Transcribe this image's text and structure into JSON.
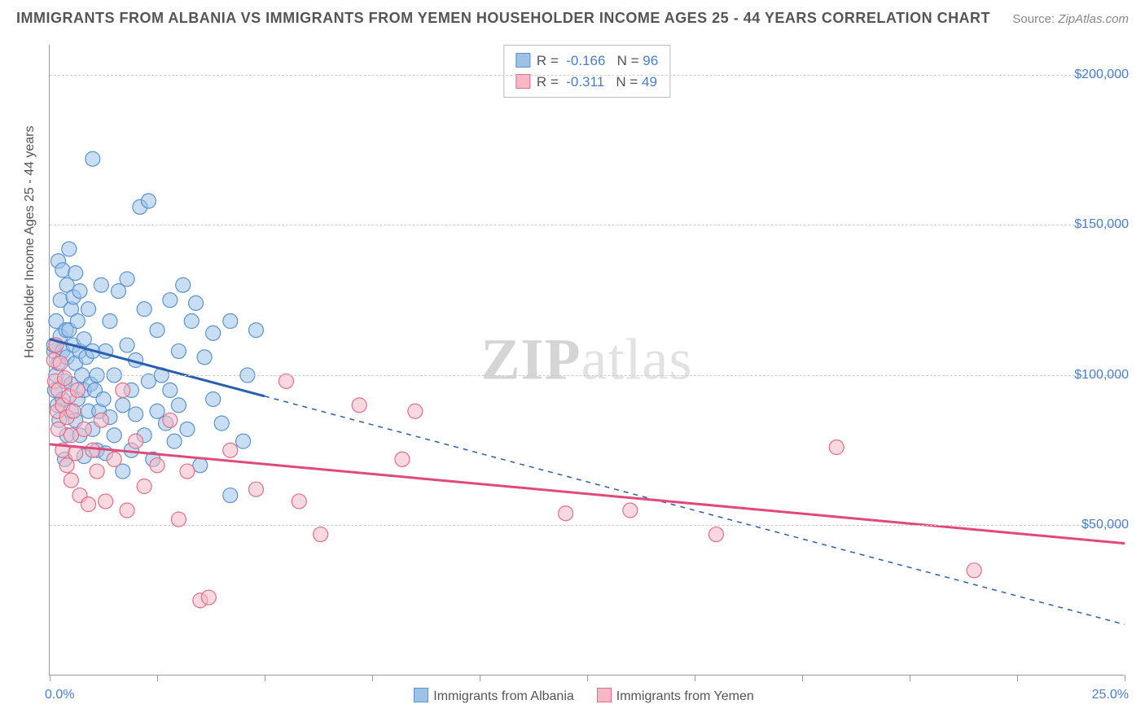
{
  "title": "IMMIGRANTS FROM ALBANIA VS IMMIGRANTS FROM YEMEN HOUSEHOLDER INCOME AGES 25 - 44 YEARS CORRELATION CHART",
  "source_label": "Source:",
  "source_value": "ZipAtlas.com",
  "watermark_bold": "ZIP",
  "watermark_light": "atlas",
  "chart": {
    "type": "scatter",
    "xlim": [
      0,
      25
    ],
    "ylim": [
      0,
      210000
    ],
    "x_axis_min_label": "0.0%",
    "x_axis_max_label": "25.0%",
    "y_axis_label": "Householder Income Ages 25 - 44 years",
    "y_ticks": [
      50000,
      100000,
      150000,
      200000
    ],
    "y_tick_labels": [
      "$50,000",
      "$100,000",
      "$150,000",
      "$200,000"
    ],
    "x_tick_positions": [
      0,
      2.5,
      5,
      7.5,
      10,
      12.5,
      15,
      17.5,
      20,
      22.5,
      25
    ],
    "grid_color": "#cccccc",
    "axis_color": "#999999",
    "background_color": "#ffffff",
    "series": [
      {
        "name": "Immigrants from Albania",
        "fill_color": "#9cc2e8",
        "stroke_color": "#5a93cf",
        "fill_opacity": 0.55,
        "marker_radius": 9,
        "correlation_r": "-0.166",
        "correlation_n": "96",
        "regression": {
          "x1": 0,
          "y1": 112000,
          "x2": 5,
          "y2": 93000,
          "dash_x1": 5,
          "dash_y1": 93000,
          "dash_x2": 25,
          "dash_y2": 17000,
          "line_color": "#2a5fb0",
          "line_width": 3
        },
        "points": [
          [
            0.1,
            108000
          ],
          [
            0.1,
            110000
          ],
          [
            0.12,
            95000
          ],
          [
            0.15,
            100000
          ],
          [
            0.15,
            118000
          ],
          [
            0.18,
            90000
          ],
          [
            0.2,
            104000
          ],
          [
            0.2,
            138000
          ],
          [
            0.22,
            85000
          ],
          [
            0.25,
            113000
          ],
          [
            0.25,
            125000
          ],
          [
            0.3,
            92000
          ],
          [
            0.3,
            108000
          ],
          [
            0.3,
            135000
          ],
          [
            0.35,
            72000
          ],
          [
            0.35,
            98000
          ],
          [
            0.38,
            115000
          ],
          [
            0.4,
            80000
          ],
          [
            0.4,
            106000
          ],
          [
            0.4,
            130000
          ],
          [
            0.45,
            115000
          ],
          [
            0.45,
            142000
          ],
          [
            0.5,
            88000
          ],
          [
            0.5,
            97000
          ],
          [
            0.5,
            122000
          ],
          [
            0.55,
            110000
          ],
          [
            0.55,
            126000
          ],
          [
            0.6,
            85000
          ],
          [
            0.6,
            104000
          ],
          [
            0.6,
            134000
          ],
          [
            0.65,
            92000
          ],
          [
            0.65,
            118000
          ],
          [
            0.7,
            80000
          ],
          [
            0.7,
            108000
          ],
          [
            0.7,
            128000
          ],
          [
            0.75,
            100000
          ],
          [
            0.8,
            73000
          ],
          [
            0.8,
            95000
          ],
          [
            0.8,
            112000
          ],
          [
            0.85,
            106000
          ],
          [
            0.9,
            88000
          ],
          [
            0.9,
            122000
          ],
          [
            0.95,
            97000
          ],
          [
            1.0,
            82000
          ],
          [
            1.0,
            108000
          ],
          [
            1.0,
            172000
          ],
          [
            1.05,
            95000
          ],
          [
            1.1,
            75000
          ],
          [
            1.1,
            100000
          ],
          [
            1.15,
            88000
          ],
          [
            1.2,
            130000
          ],
          [
            1.25,
            92000
          ],
          [
            1.3,
            108000
          ],
          [
            1.3,
            74000
          ],
          [
            1.4,
            86000
          ],
          [
            1.4,
            118000
          ],
          [
            1.5,
            80000
          ],
          [
            1.5,
            100000
          ],
          [
            1.6,
            128000
          ],
          [
            1.7,
            90000
          ],
          [
            1.7,
            68000
          ],
          [
            1.8,
            110000
          ],
          [
            1.8,
            132000
          ],
          [
            1.9,
            95000
          ],
          [
            1.9,
            75000
          ],
          [
            2.0,
            105000
          ],
          [
            2.0,
            87000
          ],
          [
            2.1,
            156000
          ],
          [
            2.2,
            80000
          ],
          [
            2.2,
            122000
          ],
          [
            2.3,
            98000
          ],
          [
            2.3,
            158000
          ],
          [
            2.4,
            72000
          ],
          [
            2.5,
            88000
          ],
          [
            2.5,
            115000
          ],
          [
            2.6,
            100000
          ],
          [
            2.7,
            84000
          ],
          [
            2.8,
            95000
          ],
          [
            2.8,
            125000
          ],
          [
            2.9,
            78000
          ],
          [
            3.0,
            108000
          ],
          [
            3.0,
            90000
          ],
          [
            3.1,
            130000
          ],
          [
            3.2,
            82000
          ],
          [
            3.3,
            118000
          ],
          [
            3.4,
            124000
          ],
          [
            3.5,
            70000
          ],
          [
            3.6,
            106000
          ],
          [
            3.8,
            92000
          ],
          [
            3.8,
            114000
          ],
          [
            4.0,
            84000
          ],
          [
            4.2,
            118000
          ],
          [
            4.2,
            60000
          ],
          [
            4.5,
            78000
          ],
          [
            4.6,
            100000
          ],
          [
            4.8,
            115000
          ]
        ]
      },
      {
        "name": "Immigrants from Yemen",
        "fill_color": "#f6b8c5",
        "stroke_color": "#e26e8a",
        "fill_opacity": 0.55,
        "marker_radius": 9,
        "correlation_r": "-0.311",
        "correlation_n": "49",
        "regression": {
          "x1": 0,
          "y1": 77000,
          "x2": 25,
          "y2": 44000,
          "line_color": "#e04a78",
          "line_width": 3
        },
        "points": [
          [
            0.1,
            105000
          ],
          [
            0.12,
            98000
          ],
          [
            0.15,
            110000
          ],
          [
            0.18,
            88000
          ],
          [
            0.2,
            95000
          ],
          [
            0.2,
            82000
          ],
          [
            0.25,
            104000
          ],
          [
            0.3,
            90000
          ],
          [
            0.3,
            75000
          ],
          [
            0.35,
            99000
          ],
          [
            0.4,
            86000
          ],
          [
            0.4,
            70000
          ],
          [
            0.45,
            93000
          ],
          [
            0.5,
            80000
          ],
          [
            0.5,
            65000
          ],
          [
            0.55,
            88000
          ],
          [
            0.6,
            74000
          ],
          [
            0.65,
            95000
          ],
          [
            0.7,
            60000
          ],
          [
            0.8,
            82000
          ],
          [
            0.9,
            57000
          ],
          [
            1.0,
            75000
          ],
          [
            1.1,
            68000
          ],
          [
            1.2,
            85000
          ],
          [
            1.3,
            58000
          ],
          [
            1.5,
            72000
          ],
          [
            1.7,
            95000
          ],
          [
            1.8,
            55000
          ],
          [
            2.0,
            78000
          ],
          [
            2.2,
            63000
          ],
          [
            2.5,
            70000
          ],
          [
            2.8,
            85000
          ],
          [
            3.0,
            52000
          ],
          [
            3.2,
            68000
          ],
          [
            3.5,
            25000
          ],
          [
            3.7,
            26000
          ],
          [
            4.2,
            75000
          ],
          [
            4.8,
            62000
          ],
          [
            5.5,
            98000
          ],
          [
            5.8,
            58000
          ],
          [
            6.3,
            47000
          ],
          [
            7.2,
            90000
          ],
          [
            8.2,
            72000
          ],
          [
            8.5,
            88000
          ],
          [
            12.0,
            54000
          ],
          [
            13.5,
            55000
          ],
          [
            15.5,
            47000
          ],
          [
            18.3,
            76000
          ],
          [
            21.5,
            35000
          ]
        ]
      }
    ]
  }
}
